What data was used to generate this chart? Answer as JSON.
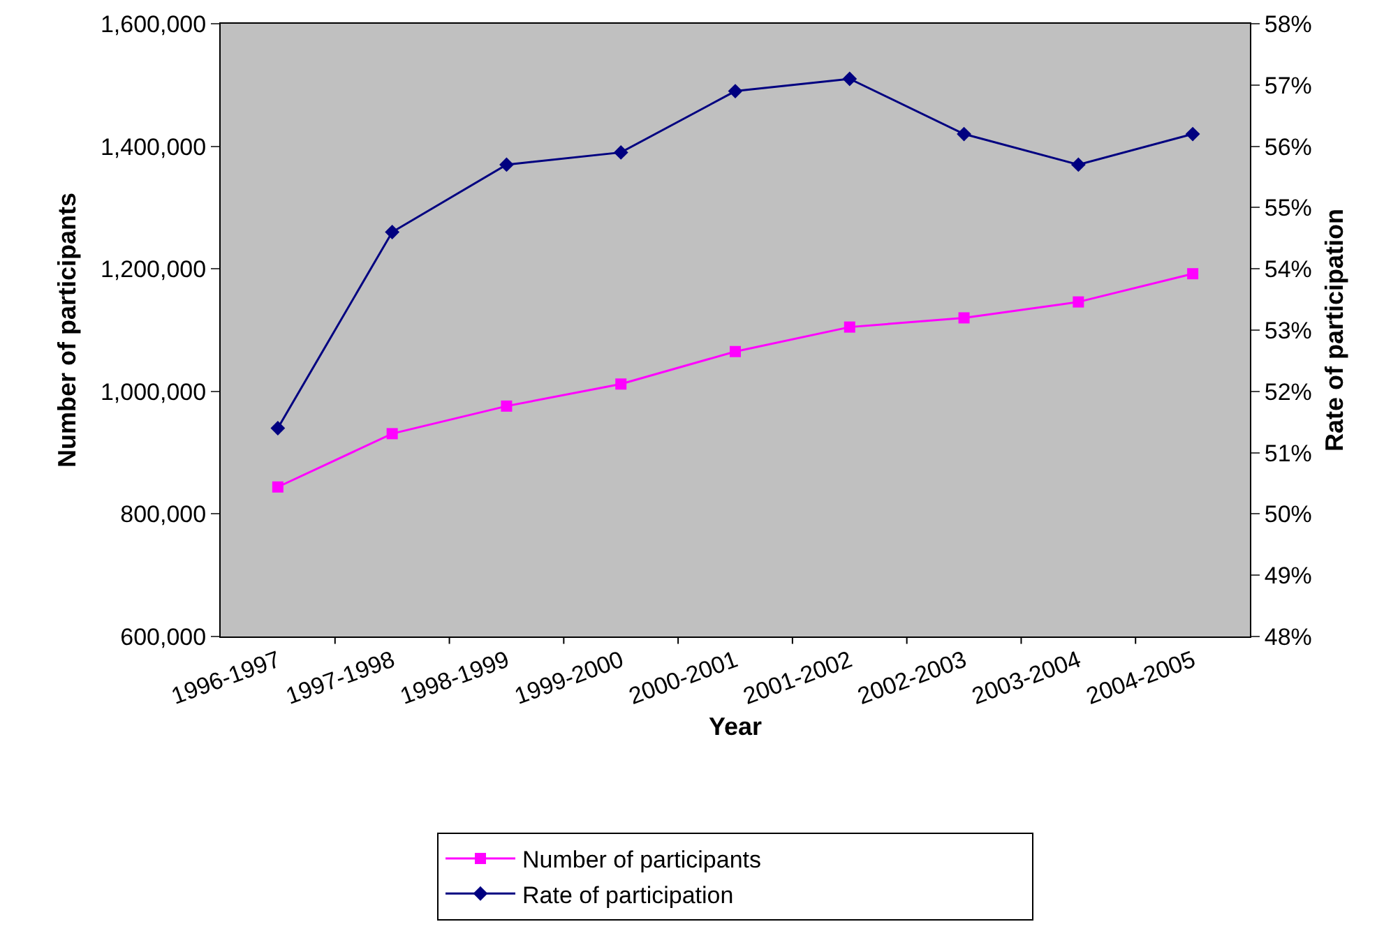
{
  "chart_data": {
    "type": "line",
    "xlabel": "Year",
    "ylabel": "Number of participants",
    "y2label": "Rate of participation",
    "categories": [
      "1996-1997",
      "1997-1998",
      "1998-1999",
      "1999-2000",
      "2000-2001",
      "2001-2002",
      "2002-2003",
      "2003-2004",
      "2004-2005"
    ],
    "series": [
      {
        "name": "Number of participants",
        "color": "#ff00ff",
        "marker": "square",
        "axis": "y",
        "values": [
          844000,
          931000,
          976000,
          1012000,
          1065000,
          1105000,
          1120000,
          1146000,
          1192000
        ]
      },
      {
        "name": "Rate of participation",
        "color": "#000080",
        "marker": "diamond",
        "axis": "y2",
        "values": [
          51.4,
          54.6,
          55.7,
          55.9,
          56.9,
          57.1,
          56.2,
          55.7,
          56.2
        ]
      }
    ],
    "ylim": [
      600000,
      1600000
    ],
    "yticks": [
      {
        "value": 600000,
        "label": "600,000"
      },
      {
        "value": 800000,
        "label": "800,000"
      },
      {
        "value": 1000000,
        "label": "1,000,000"
      },
      {
        "value": 1200000,
        "label": "1,200,000"
      },
      {
        "value": 1400000,
        "label": "1,400,000"
      },
      {
        "value": 1600000,
        "label": "1,600,000"
      }
    ],
    "y2lim": [
      48,
      58
    ],
    "y2ticks": [
      {
        "value": 48,
        "label": "48%"
      },
      {
        "value": 49,
        "label": "49%"
      },
      {
        "value": 50,
        "label": "50%"
      },
      {
        "value": 51,
        "label": "51%"
      },
      {
        "value": 52,
        "label": "52%"
      },
      {
        "value": 53,
        "label": "53%"
      },
      {
        "value": 54,
        "label": "54%"
      },
      {
        "value": 55,
        "label": "55%"
      },
      {
        "value": 56,
        "label": "56%"
      },
      {
        "value": 57,
        "label": "57%"
      },
      {
        "value": 58,
        "label": "58%"
      }
    ],
    "grid": false,
    "legend": "bottom",
    "line_style": "solid"
  }
}
